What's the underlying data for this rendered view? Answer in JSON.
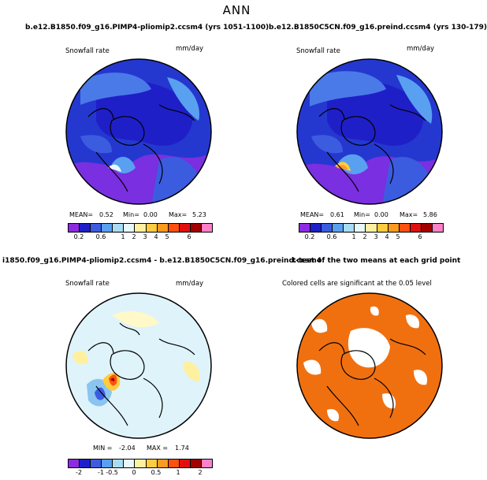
{
  "header": {
    "title": "ANN"
  },
  "panels": [
    {
      "case": "b.e12.B1850.f09_g16.PIMP4-pliomip2.ccsm4 (yrs 1051-1100)",
      "variable": "Snowfall rate",
      "units": "mm/day",
      "stats": {
        "mean_label": "MEAN=",
        "mean": "0.52",
        "min_label": "Min=",
        "min": "0.00",
        "max_label": "Max=",
        "max": "5.23"
      }
    },
    {
      "case": "b.e12.B1850C5CN.f09_g16.preind.ccsm4 (yrs 130-179)",
      "variable": "Snowfall rate",
      "units": "mm/day",
      "stats": {
        "mean_label": "MEAN=",
        "mean": "0.61",
        "min_label": "Min=",
        "min": "0.00",
        "max_label": "Max=",
        "max": "5.86"
      }
    },
    {
      "case": "i1850.f09_g16.PIMP4-pliomip2.ccsm4 - b.e12.B1850C5CN.f09_g16.preind.ccsm4",
      "variable": "Snowfall rate",
      "units": "mm/day",
      "stats": {
        "min_label": "MIN =",
        "min": "-2.04",
        "max_label": "MAX =",
        "max": "1.74"
      }
    },
    {
      "case": "t-test of the two means at each grid point",
      "note": "Colored cells are significant at the 0.05 level"
    }
  ],
  "colorbars": {
    "abs": {
      "labels": [
        "0.2",
        "0.6",
        "1",
        "2",
        "3",
        "4",
        "5",
        "6"
      ],
      "colors": [
        "#8d2be2",
        "#1f1fc8",
        "#3c5ce0",
        "#5aa0f0",
        "#a8dcf5",
        "#e8f7fb",
        "#fff0a0",
        "#ffcc40",
        "#ff9a20",
        "#ff5010",
        "#e01010",
        "#a00000",
        "#ff80c8"
      ]
    },
    "diff": {
      "labels": [
        "-2",
        "-1",
        "-0.5",
        "0",
        "0.5",
        "1",
        "2"
      ],
      "colors": [
        "#8d2be2",
        "#1f1fc8",
        "#3c5ce0",
        "#5aa0f0",
        "#a8dcf5",
        "#e8f7fb",
        "#fff0a0",
        "#ffcc40",
        "#ff9a20",
        "#ff5010",
        "#e01010",
        "#a00000",
        "#ff80c8"
      ]
    }
  },
  "colors": {
    "significance": "#f07010",
    "ocean_blue": "#2a3ad8",
    "diff_bg": "#dff3fb"
  }
}
